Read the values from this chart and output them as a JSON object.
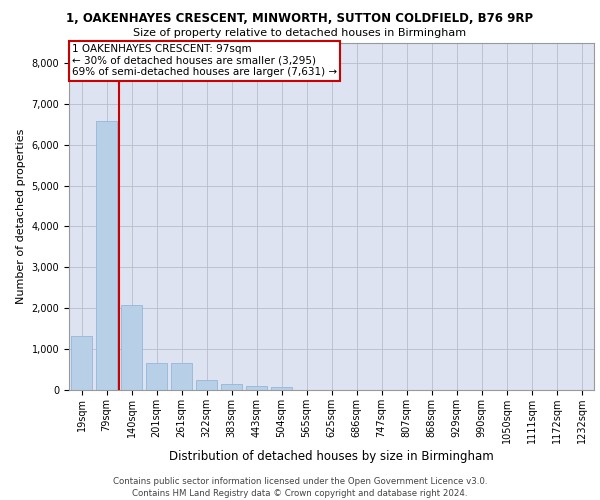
{
  "title_line1": "1, OAKENHAYES CRESCENT, MINWORTH, SUTTON COLDFIELD, B76 9RP",
  "title_line2": "Size of property relative to detached houses in Birmingham",
  "xlabel": "Distribution of detached houses by size in Birmingham",
  "ylabel": "Number of detached properties",
  "property_label": "1 OAKENHAYES CRESCENT: 97sqm",
  "annotation_line1": "← 30% of detached houses are smaller (3,295)",
  "annotation_line2": "69% of semi-detached houses are larger (7,631) →",
  "footer_line1": "Contains HM Land Registry data © Crown copyright and database right 2024.",
  "footer_line2": "Contains public sector information licensed under the Open Government Licence v3.0.",
  "bar_color": "#b8cfe8",
  "bar_edge_color": "#8aafd4",
  "vline_color": "#cc0000",
  "annotation_box_color": "#cc0000",
  "background_color": "#ffffff",
  "plot_bg_color": "#dde3f0",
  "grid_color": "#bbbbd0",
  "categories": [
    "19sqm",
    "79sqm",
    "140sqm",
    "201sqm",
    "261sqm",
    "322sqm",
    "383sqm",
    "443sqm",
    "504sqm",
    "565sqm",
    "625sqm",
    "686sqm",
    "747sqm",
    "807sqm",
    "868sqm",
    "929sqm",
    "990sqm",
    "1050sqm",
    "1111sqm",
    "1172sqm",
    "1232sqm"
  ],
  "values": [
    1310,
    6580,
    2080,
    650,
    650,
    250,
    140,
    100,
    80,
    0,
    0,
    0,
    0,
    0,
    0,
    0,
    0,
    0,
    0,
    0,
    0
  ],
  "ylim": [
    0,
    8500
  ],
  "property_bin_index": 1,
  "title1_fontsize": 8.5,
  "title2_fontsize": 8.0,
  "ylabel_fontsize": 8.0,
  "xlabel_fontsize": 8.5,
  "tick_fontsize": 7.0,
  "annotation_fontsize": 7.5,
  "footer_fontsize": 6.2
}
